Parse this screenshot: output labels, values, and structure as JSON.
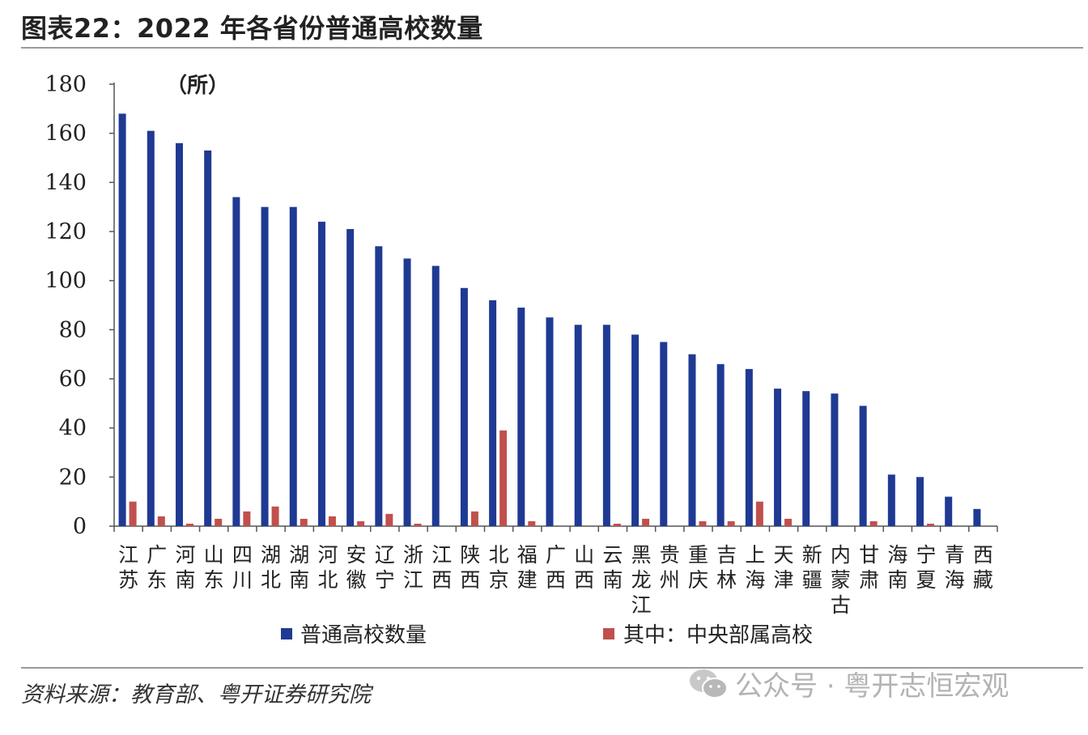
{
  "title": "图表22：2022 年各省份普通高校数量",
  "source": "资料来源：教育部、粤开证券研究院",
  "watermark": "公众号 · 粤开志恒宏观",
  "chart_data": {
    "type": "bar",
    "unit_label": "（所）",
    "ylim": [
      0,
      180
    ],
    "yticks": [
      0,
      20,
      40,
      60,
      80,
      100,
      120,
      140,
      160,
      180
    ],
    "grid": false,
    "legend_position": "bottom",
    "categories": [
      "江苏",
      "广东",
      "河南",
      "山东",
      "四川",
      "湖北",
      "湖南",
      "河北",
      "安徽",
      "辽宁",
      "浙江",
      "江西",
      "陕西",
      "北京",
      "福建",
      "广西",
      "山西",
      "云南",
      "黑龙江",
      "贵州",
      "重庆",
      "吉林",
      "上海",
      "天津",
      "新疆",
      "内蒙古",
      "甘肃",
      "海南",
      "宁夏",
      "青海",
      "西藏"
    ],
    "series": [
      {
        "name": "普通高校数量",
        "color": "#1f3a93",
        "values": [
          168,
          161,
          156,
          153,
          134,
          130,
          130,
          124,
          121,
          114,
          109,
          106,
          97,
          92,
          89,
          85,
          82,
          82,
          78,
          75,
          70,
          66,
          64,
          56,
          55,
          54,
          49,
          21,
          20,
          12,
          7
        ]
      },
      {
        "name": "其中：中央部属高校",
        "color": "#c0504d",
        "values": [
          10,
          4,
          1,
          3,
          6,
          8,
          3,
          4,
          2,
          5,
          1,
          0,
          6,
          39,
          2,
          0,
          0,
          1,
          3,
          0,
          2,
          2,
          10,
          3,
          0,
          0,
          2,
          0,
          1,
          0,
          0
        ]
      }
    ]
  }
}
